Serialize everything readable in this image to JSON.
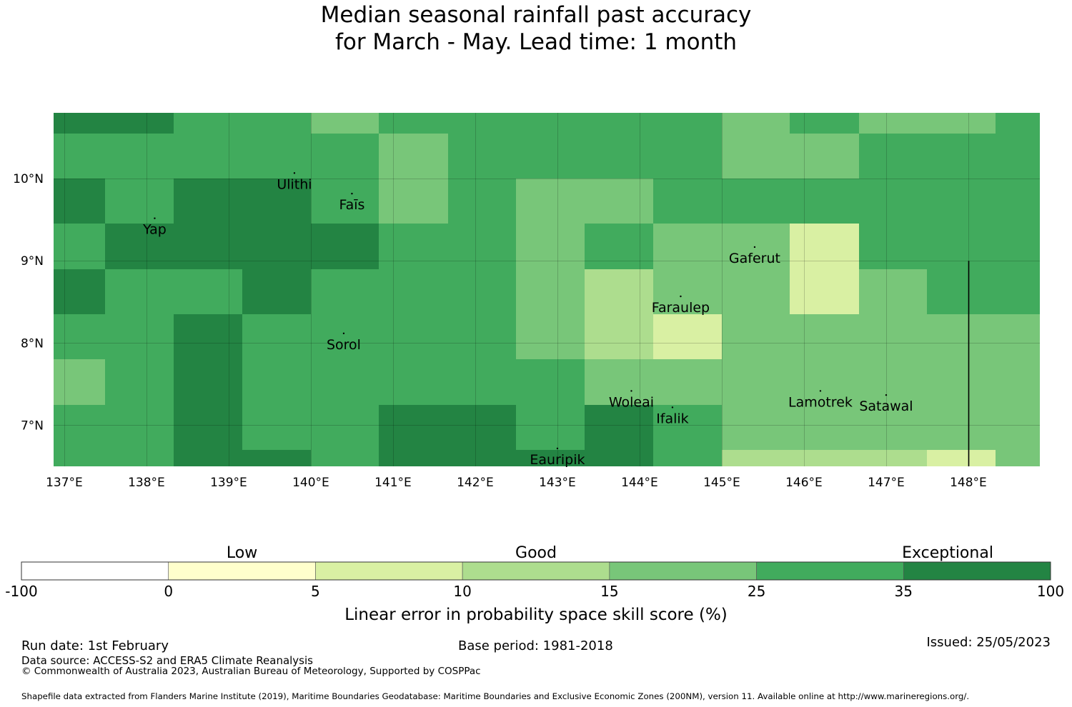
{
  "title": {
    "line1": "Median seasonal rainfall past accuracy",
    "line2": "for March - May. Lead time: 1 month"
  },
  "chart_data": {
    "type": "heatmap",
    "title": "Median seasonal rainfall past accuracy for March - May. Lead time: 1 month",
    "lon_ticks": [
      "137°E",
      "138°E",
      "139°E",
      "140°E",
      "141°E",
      "142°E",
      "143°E",
      "144°E",
      "145°E",
      "146°E",
      "147°E",
      "148°E"
    ],
    "lon_tick_values": [
      137,
      138,
      139,
      140,
      141,
      142,
      143,
      144,
      145,
      146,
      147,
      148
    ],
    "lat_ticks": [
      "10°N",
      "9°N",
      "8°N",
      "7°N"
    ],
    "lat_tick_values": [
      10,
      9,
      8,
      7
    ],
    "xlim": [
      136.87,
      148.87
    ],
    "ylim": [
      6.5,
      10.8
    ],
    "grid": true,
    "palette": [
      "#ffffff",
      "#ffffcc",
      "#d9f0a3",
      "#addd8e",
      "#78c679",
      "#41ab5d",
      "#238443"
    ],
    "cell_columns_lon": [
      137.0,
      137.5,
      138.33,
      139.17,
      140.0,
      140.83,
      141.67,
      142.5,
      143.33,
      144.17,
      145.0,
      145.83,
      146.67,
      147.5,
      148.33,
      148.87
    ],
    "cell_rows_lat": [
      10.8,
      10.55,
      10.0,
      9.45,
      8.9,
      8.35,
      7.8,
      7.25,
      6.7,
      6.5
    ],
    "category_grid": [
      [
        6,
        6,
        5,
        5,
        4,
        5,
        5,
        5,
        5,
        5,
        4,
        5,
        4,
        4,
        5
      ],
      [
        5,
        5,
        5,
        5,
        5,
        4,
        5,
        5,
        5,
        5,
        4,
        4,
        5,
        5,
        5
      ],
      [
        6,
        5,
        6,
        6,
        5,
        4,
        5,
        4,
        4,
        5,
        5,
        5,
        5,
        5,
        5
      ],
      [
        5,
        6,
        6,
        6,
        6,
        5,
        5,
        4,
        5,
        4,
        4,
        2,
        5,
        5,
        5
      ],
      [
        6,
        5,
        5,
        6,
        5,
        5,
        5,
        4,
        3,
        4,
        4,
        2,
        4,
        5,
        5
      ],
      [
        5,
        5,
        6,
        5,
        5,
        5,
        5,
        4,
        3,
        2,
        4,
        4,
        4,
        4,
        4
      ],
      [
        4,
        5,
        6,
        5,
        5,
        5,
        5,
        5,
        4,
        4,
        4,
        4,
        4,
        4,
        4
      ],
      [
        5,
        5,
        6,
        5,
        5,
        6,
        6,
        5,
        6,
        5,
        4,
        4,
        4,
        4,
        4
      ],
      [
        5,
        5,
        6,
        6,
        5,
        6,
        6,
        6,
        6,
        5,
        3,
        3,
        3,
        2,
        4
      ]
    ],
    "islands": [
      {
        "name": "Ulithi",
        "lon": 139.8,
        "lat": 10.05
      },
      {
        "name": "Faīs",
        "lon": 140.5,
        "lat": 9.8
      },
      {
        "name": "Yap",
        "lon": 138.1,
        "lat": 9.5
      },
      {
        "name": "Gaferut",
        "lon": 145.4,
        "lat": 9.15
      },
      {
        "name": "Faraulep",
        "lon": 144.5,
        "lat": 8.55
      },
      {
        "name": "Sorol",
        "lon": 140.4,
        "lat": 8.1
      },
      {
        "name": "Woleai",
        "lon": 143.9,
        "lat": 7.4
      },
      {
        "name": "Ifalik",
        "lon": 144.4,
        "lat": 7.2
      },
      {
        "name": "Lamotrek",
        "lon": 146.2,
        "lat": 7.4
      },
      {
        "name": "Satawal",
        "lon": 147.0,
        "lat": 7.35
      },
      {
        "name": "Eauripik",
        "lon": 143.0,
        "lat": 6.7
      }
    ],
    "boundary_line_lon": 148.0,
    "boundary_line_lat_range": [
      6.5,
      9.0
    ],
    "colorbar": {
      "boundaries": [
        "-100",
        "0",
        "5",
        "10",
        "15",
        "25",
        "35",
        "100"
      ],
      "colors": [
        "#ffffff",
        "#ffffcc",
        "#d9f0a3",
        "#addd8e",
        "#78c679",
        "#41ab5d",
        "#238443"
      ],
      "category_labels": [
        "Low",
        "Good",
        "Exceptional"
      ],
      "xlabel": "Linear error in probability space skill score (%)"
    }
  },
  "footer": {
    "run_date": "Run date: 1st February",
    "base_period": "Base period: 1981-2018",
    "issued": "Issued: 25/05/2023",
    "data_source": "Data source: ACCESS-S2 and ERA5 Climate Reanalysis",
    "copyright": "© Commonwealth of Australia 2023, Australian Bureau of Meteorology, Supported by COSPPac",
    "shapefile": "Shapefile data extracted from Flanders Marine Institute (2019), Maritime Boundaries Geodatabase: Maritime Boundaries and Exclusive Economic Zones (200NM), version 11. Available online at http://www.marineregions.org/."
  }
}
